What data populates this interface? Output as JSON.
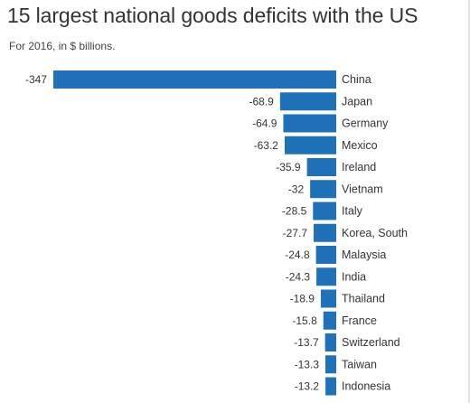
{
  "chart_data": {
    "type": "bar",
    "orientation": "horizontal",
    "title": "15 largest national goods deficits with the US",
    "subtitle": "For 2016, in $ billions.",
    "categories": [
      "China",
      "Japan",
      "Germany",
      "Mexico",
      "Ireland",
      "Vietnam",
      "Italy",
      "Korea, South",
      "Malaysia",
      "India",
      "Thailand",
      "France",
      "Switzerland",
      "Taiwan",
      "Indonesia"
    ],
    "values": [
      -347,
      -68.9,
      -64.9,
      -63.2,
      -35.9,
      -32,
      -28.5,
      -27.7,
      -24.8,
      -24.3,
      -18.9,
      -15.8,
      -13.7,
      -13.3,
      -13.2
    ],
    "value_labels": [
      "-347",
      "-68.9",
      "-64.9",
      "-63.2",
      "-35.9",
      "-32",
      "-28.5",
      "-27.7",
      "-24.8",
      "-24.3",
      "-18.9",
      "-15.8",
      "-13.7",
      "-13.3",
      "-13.2"
    ],
    "xlim": [
      -347,
      0
    ],
    "xlabel": "",
    "ylabel": "",
    "grid": false,
    "legend": "none",
    "bar_color": "#1f72b8"
  }
}
